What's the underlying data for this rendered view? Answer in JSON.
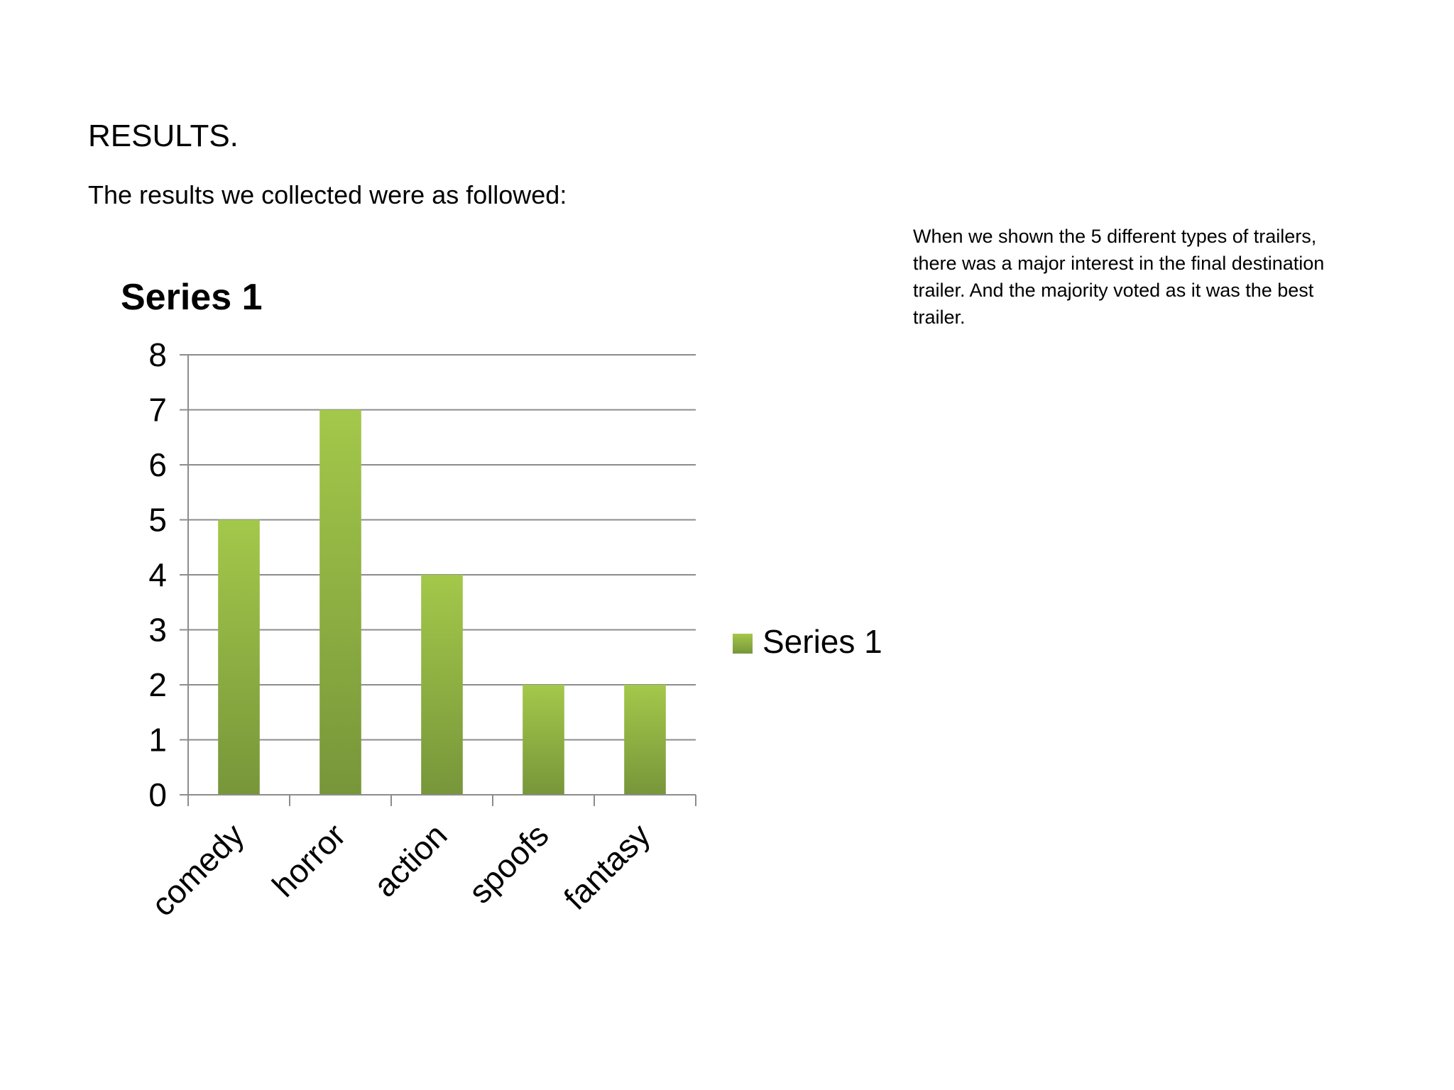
{
  "heading": "RESULTS.",
  "intro": "The results we collected were as followed:",
  "note": "When we shown the  5 different types of trailers, there was  a major interest in the final destination trailer. And the majority voted as it was the best trailer.",
  "colors": {
    "bar_top": "#a3c84a",
    "bar_bottom": "#77963a",
    "grid": "#8c8c8c"
  },
  "chart_data": {
    "type": "bar",
    "title": "Series 1",
    "categories": [
      "comedy",
      "horror",
      "action",
      "spoofs",
      "fantasy"
    ],
    "series": [
      {
        "name": "Series 1",
        "values": [
          5,
          7,
          4,
          2,
          2
        ]
      }
    ],
    "ylim": [
      0,
      8
    ],
    "yticks": [
      0,
      1,
      2,
      3,
      4,
      5,
      6,
      7,
      8
    ],
    "xlabel": "",
    "ylabel": "",
    "grid": true,
    "legend": "right"
  }
}
